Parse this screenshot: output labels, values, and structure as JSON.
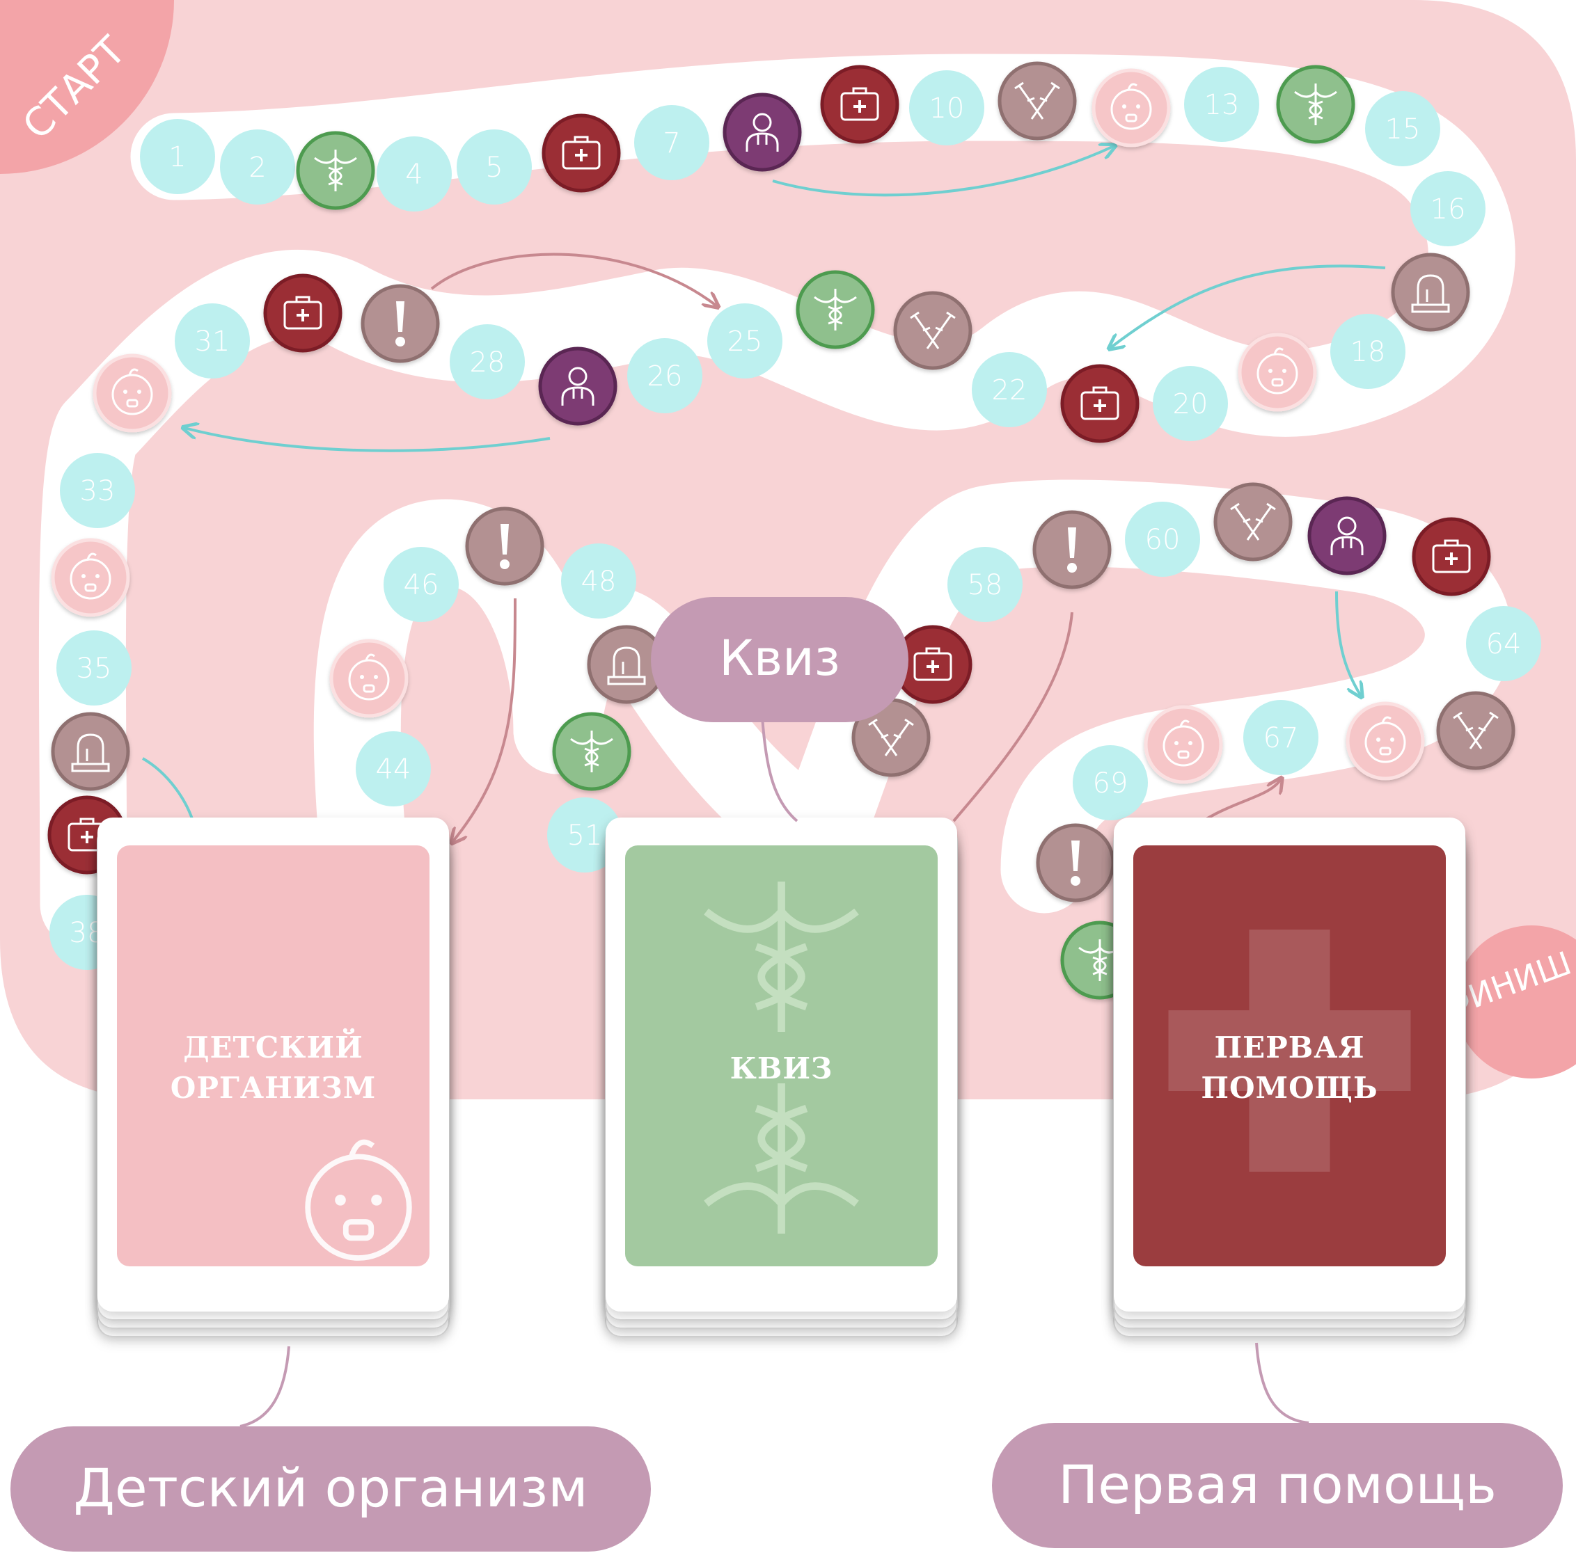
{
  "board": {
    "start_label": "СТАРТ",
    "finish_label": "ФИНИШ",
    "colors": {
      "board_bg": "#f8d3d5",
      "path": "#ffffff",
      "number_cell": "#bdf0ef",
      "number_text": "#ffffff",
      "kids_cell": "#f6c6c8",
      "quiz_cell": "#8fc08d",
      "first_aid_cell": "#9b2f35",
      "doctor_cell": "#7d3b73",
      "crutches_cell": "#b39192",
      "alarm_cell": "#b39192",
      "warning_cell": "#b39192",
      "arrow_teal": "#6fcfd0",
      "arrow_mauve": "#c7888f"
    },
    "cells": [
      {
        "type": "number",
        "label": "1"
      },
      {
        "type": "number",
        "label": "2"
      },
      {
        "type": "quiz",
        "icon": "caduceus-icon"
      },
      {
        "type": "number",
        "label": "4"
      },
      {
        "type": "number",
        "label": "5"
      },
      {
        "type": "first_aid",
        "icon": "medkit-icon"
      },
      {
        "type": "number",
        "label": "7"
      },
      {
        "type": "doctor",
        "icon": "doctor-icon"
      },
      {
        "type": "first_aid",
        "icon": "medkit-icon"
      },
      {
        "type": "number",
        "label": "10"
      },
      {
        "type": "crutches",
        "icon": "crutches-icon"
      },
      {
        "type": "kids",
        "icon": "baby-icon"
      },
      {
        "type": "number",
        "label": "13"
      },
      {
        "type": "quiz",
        "icon": "caduceus-icon"
      },
      {
        "type": "number",
        "label": "15"
      },
      {
        "type": "number",
        "label": "16"
      },
      {
        "type": "alarm",
        "icon": "siren-icon"
      },
      {
        "type": "number",
        "label": "18"
      },
      {
        "type": "kids",
        "icon": "baby-icon"
      },
      {
        "type": "number",
        "label": "20"
      },
      {
        "type": "first_aid",
        "icon": "medkit-icon"
      },
      {
        "type": "number",
        "label": "22"
      },
      {
        "type": "crutches",
        "icon": "crutches-icon"
      },
      {
        "type": "quiz",
        "icon": "caduceus-icon"
      },
      {
        "type": "number",
        "label": "25"
      },
      {
        "type": "number",
        "label": "26"
      },
      {
        "type": "doctor",
        "icon": "doctor-icon"
      },
      {
        "type": "number",
        "label": "28"
      },
      {
        "type": "warning",
        "icon": "exclamation-icon"
      },
      {
        "type": "first_aid",
        "icon": "medkit-icon"
      },
      {
        "type": "number",
        "label": "31"
      },
      {
        "type": "kids",
        "icon": "baby-icon"
      },
      {
        "type": "number",
        "label": "33"
      },
      {
        "type": "kids",
        "icon": "baby-icon"
      },
      {
        "type": "number",
        "label": "35"
      },
      {
        "type": "alarm",
        "icon": "siren-icon"
      },
      {
        "type": "first_aid",
        "icon": "medkit-icon"
      },
      {
        "type": "number",
        "label": "38"
      },
      {
        "type": "number",
        "label": "44"
      },
      {
        "type": "kids",
        "icon": "baby-icon"
      },
      {
        "type": "number",
        "label": "46"
      },
      {
        "type": "warning",
        "icon": "exclamation-icon"
      },
      {
        "type": "number",
        "label": "48"
      },
      {
        "type": "alarm",
        "icon": "siren-icon"
      },
      {
        "type": "quiz",
        "icon": "caduceus-icon"
      },
      {
        "type": "number",
        "label": "51"
      },
      {
        "type": "crutches",
        "icon": "crutches-icon"
      },
      {
        "type": "first_aid",
        "icon": "medkit-icon"
      },
      {
        "type": "number",
        "label": "58"
      },
      {
        "type": "warning",
        "icon": "exclamation-icon"
      },
      {
        "type": "number",
        "label": "60"
      },
      {
        "type": "crutches",
        "icon": "crutches-icon"
      },
      {
        "type": "doctor",
        "icon": "doctor-icon"
      },
      {
        "type": "first_aid",
        "icon": "medkit-icon"
      },
      {
        "type": "number",
        "label": "64"
      },
      {
        "type": "crutches",
        "icon": "crutches-icon"
      },
      {
        "type": "kids",
        "icon": "baby-icon"
      },
      {
        "type": "number",
        "label": "67"
      },
      {
        "type": "kids",
        "icon": "baby-icon"
      },
      {
        "type": "number",
        "label": "69"
      },
      {
        "type": "warning",
        "icon": "exclamation-icon"
      },
      {
        "type": "quiz",
        "icon": "caduceus-icon"
      }
    ]
  },
  "cards": [
    {
      "key": "kids",
      "title_lines": [
        "ДЕТСКИЙ",
        "ОРГАНИЗМ"
      ],
      "color": "#f4bfc3",
      "icon": "baby-icon"
    },
    {
      "key": "quiz",
      "title_lines": [
        "КВИЗ"
      ],
      "color": "#a3c9a0",
      "icon": "caduceus-icon"
    },
    {
      "key": "first_aid",
      "title_lines": [
        "ПЕРВАЯ",
        "ПОМОЩЬ"
      ],
      "color": "#9b3d3f",
      "icon": "red-cross-icon"
    }
  ],
  "labels": {
    "quiz": "Квиз",
    "kids": "Детский организм",
    "first_aid": "Первая помощь",
    "pill_color": "#c49ab3"
  }
}
